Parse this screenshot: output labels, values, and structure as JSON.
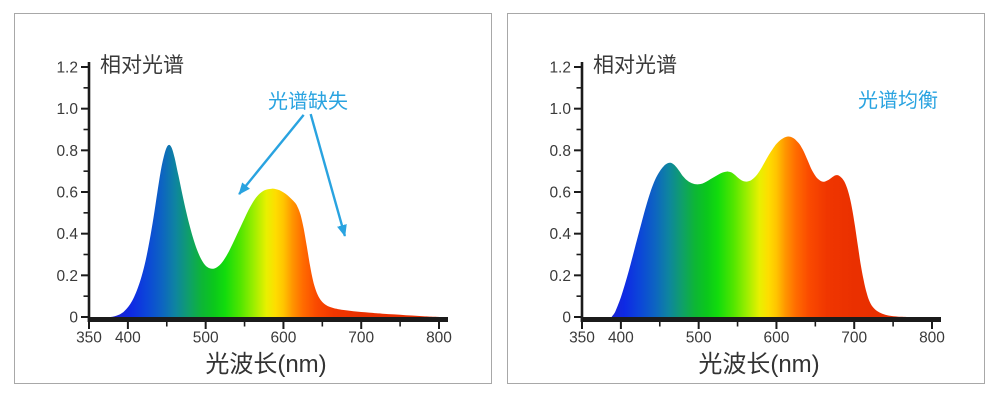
{
  "page": {
    "background": "#ffffff",
    "panel_border": "#a8a8a8",
    "axis_color": "#1b1b1b"
  },
  "chart_data": [
    {
      "type": "area",
      "title": "相对光谱",
      "xlabel": "光波长(nm)",
      "ylabel": "",
      "xlim": [
        350,
        800
      ],
      "ylim": [
        0,
        1.2
      ],
      "grid": false,
      "x_major_ticks": [
        350,
        400,
        500,
        600,
        700,
        800
      ],
      "x_minor_ticks": [
        450,
        550,
        650,
        750
      ],
      "y_major_tick_labels": [
        "0",
        "0.2",
        "0.4",
        "0.6",
        "0.8",
        "1.0",
        "1.2"
      ],
      "y_minor_ticks": [
        0.1,
        0.3,
        0.5,
        0.7,
        0.9,
        1.1
      ],
      "annotation": {
        "label": "光谱缺失",
        "color": "#29a3e0",
        "arrows": [
          {
            "from": [
              626,
              0.97
            ],
            "to": [
              543,
              0.59
            ]
          },
          {
            "from": [
              635,
              0.974
            ],
            "to": [
              679,
              0.389
            ]
          }
        ]
      },
      "series": [
        {
          "name": "相对光谱",
          "points": [
            [
              378,
              0
            ],
            [
              383,
              0.004
            ],
            [
              388,
              0.01
            ],
            [
              393,
              0.02
            ],
            [
              398,
              0.038
            ],
            [
              403,
              0.062
            ],
            [
              408,
              0.096
            ],
            [
              413,
              0.142
            ],
            [
              418,
              0.2
            ],
            [
              423,
              0.275
            ],
            [
              428,
              0.37
            ],
            [
              433,
              0.48
            ],
            [
              438,
              0.6
            ],
            [
              443,
              0.715
            ],
            [
              448,
              0.795
            ],
            [
              452,
              0.825
            ],
            [
              456,
              0.815
            ],
            [
              460,
              0.765
            ],
            [
              465,
              0.68
            ],
            [
              470,
              0.59
            ],
            [
              475,
              0.505
            ],
            [
              480,
              0.43
            ],
            [
              485,
              0.365
            ],
            [
              490,
              0.312
            ],
            [
              495,
              0.272
            ],
            [
              500,
              0.246
            ],
            [
              505,
              0.234
            ],
            [
              510,
              0.232
            ],
            [
              515,
              0.24
            ],
            [
              520,
              0.257
            ],
            [
              525,
              0.283
            ],
            [
              530,
              0.316
            ],
            [
              535,
              0.354
            ],
            [
              540,
              0.394
            ],
            [
              545,
              0.434
            ],
            [
              550,
              0.474
            ],
            [
              555,
              0.512
            ],
            [
              560,
              0.546
            ],
            [
              565,
              0.574
            ],
            [
              570,
              0.594
            ],
            [
              575,
              0.607
            ],
            [
              580,
              0.613
            ],
            [
              585,
              0.616
            ],
            [
              590,
              0.614
            ],
            [
              595,
              0.608
            ],
            [
              600,
              0.598
            ],
            [
              605,
              0.585
            ],
            [
              610,
              0.568
            ],
            [
              615,
              0.548
            ],
            [
              618,
              0.53
            ],
            [
              622,
              0.49
            ],
            [
              626,
              0.425
            ],
            [
              630,
              0.34
            ],
            [
              634,
              0.25
            ],
            [
              638,
              0.175
            ],
            [
              642,
              0.125
            ],
            [
              646,
              0.092
            ],
            [
              650,
              0.072
            ],
            [
              655,
              0.057
            ],
            [
              660,
              0.048
            ],
            [
              665,
              0.042
            ],
            [
              670,
              0.038
            ],
            [
              680,
              0.032
            ],
            [
              690,
              0.028
            ],
            [
              700,
              0.024
            ],
            [
              710,
              0.021
            ],
            [
              720,
              0.018
            ],
            [
              735,
              0.014
            ],
            [
              750,
              0.011
            ],
            [
              765,
              0.007
            ],
            [
              780,
              0.004
            ],
            [
              795,
              0.001
            ],
            [
              800,
              0
            ]
          ]
        }
      ]
    },
    {
      "type": "area",
      "title": "相对光谱",
      "xlabel": "光波长(nm)",
      "ylabel": "",
      "xlim": [
        350,
        800
      ],
      "ylim": [
        0,
        1.2
      ],
      "grid": false,
      "x_major_ticks": [
        350,
        400,
        500,
        600,
        700,
        800
      ],
      "x_minor_ticks": [
        450,
        550,
        650,
        750
      ],
      "y_major_tick_labels": [
        "0",
        "0.2",
        "0.4",
        "0.6",
        "0.8",
        "1.0",
        "1.2"
      ],
      "y_minor_ticks": [
        0.1,
        0.3,
        0.5,
        0.7,
        0.9,
        1.1
      ],
      "annotation": {
        "label": "光谱均衡",
        "color": "#29a3e0",
        "arrows": []
      },
      "series": [
        {
          "name": "相对光谱",
          "points": [
            [
              388,
              0
            ],
            [
              392,
              0.02
            ],
            [
              396,
              0.055
            ],
            [
              400,
              0.095
            ],
            [
              405,
              0.155
            ],
            [
              410,
              0.22
            ],
            [
              415,
              0.29
            ],
            [
              420,
              0.36
            ],
            [
              425,
              0.43
            ],
            [
              430,
              0.5
            ],
            [
              435,
              0.565
            ],
            [
              440,
              0.622
            ],
            [
              445,
              0.667
            ],
            [
              450,
              0.7
            ],
            [
              455,
              0.724
            ],
            [
              460,
              0.738
            ],
            [
              464,
              0.74
            ],
            [
              468,
              0.732
            ],
            [
              472,
              0.716
            ],
            [
              476,
              0.696
            ],
            [
              480,
              0.675
            ],
            [
              485,
              0.656
            ],
            [
              490,
              0.644
            ],
            [
              495,
              0.638
            ],
            [
              500,
              0.637
            ],
            [
              505,
              0.641
            ],
            [
              510,
              0.65
            ],
            [
              515,
              0.661
            ],
            [
              520,
              0.672
            ],
            [
              525,
              0.683
            ],
            [
              530,
              0.692
            ],
            [
              535,
              0.697
            ],
            [
              538,
              0.698
            ],
            [
              542,
              0.694
            ],
            [
              546,
              0.684
            ],
            [
              550,
              0.67
            ],
            [
              554,
              0.659
            ],
            [
              558,
              0.652
            ],
            [
              562,
              0.65
            ],
            [
              566,
              0.654
            ],
            [
              570,
              0.664
            ],
            [
              575,
              0.683
            ],
            [
              580,
              0.711
            ],
            [
              585,
              0.744
            ],
            [
              590,
              0.777
            ],
            [
              595,
              0.806
            ],
            [
              600,
              0.831
            ],
            [
              605,
              0.849
            ],
            [
              610,
              0.861
            ],
            [
              614,
              0.866
            ],
            [
              618,
              0.865
            ],
            [
              622,
              0.858
            ],
            [
              626,
              0.845
            ],
            [
              630,
              0.828
            ],
            [
              635,
              0.795
            ],
            [
              640,
              0.752
            ],
            [
              645,
              0.71
            ],
            [
              650,
              0.678
            ],
            [
              654,
              0.661
            ],
            [
              658,
              0.651
            ],
            [
              662,
              0.65
            ],
            [
              666,
              0.656
            ],
            [
              670,
              0.666
            ],
            [
              674,
              0.677
            ],
            [
              677,
              0.681
            ],
            [
              680,
              0.679
            ],
            [
              684,
              0.667
            ],
            [
              688,
              0.645
            ],
            [
              692,
              0.605
            ],
            [
              696,
              0.545
            ],
            [
              700,
              0.46
            ],
            [
              704,
              0.36
            ],
            [
              708,
              0.26
            ],
            [
              712,
              0.178
            ],
            [
              716,
              0.115
            ],
            [
              720,
              0.072
            ],
            [
              725,
              0.043
            ],
            [
              731,
              0.025
            ],
            [
              738,
              0.013
            ],
            [
              746,
              0.006
            ],
            [
              756,
              0.002
            ],
            [
              770,
              0
            ]
          ]
        }
      ]
    }
  ],
  "spectrum_gradient": [
    [
      350,
      "#2a2ab2"
    ],
    [
      385,
      "#1b22d2"
    ],
    [
      405,
      "#0e2ae4"
    ],
    [
      425,
      "#0c47d8"
    ],
    [
      445,
      "#0d66c0"
    ],
    [
      462,
      "#0e869e"
    ],
    [
      478,
      "#0f9e6c"
    ],
    [
      495,
      "#0db636"
    ],
    [
      510,
      "#0bc71c"
    ],
    [
      525,
      "#12dc0c"
    ],
    [
      545,
      "#52e600"
    ],
    [
      562,
      "#9cee00"
    ],
    [
      578,
      "#e8f000"
    ],
    [
      590,
      "#fedd00"
    ],
    [
      600,
      "#ffc400"
    ],
    [
      612,
      "#ff9400"
    ],
    [
      625,
      "#ff6c00"
    ],
    [
      642,
      "#fa4a00"
    ],
    [
      665,
      "#f03600"
    ],
    [
      700,
      "#ea3000"
    ],
    [
      800,
      "#e42c00"
    ]
  ]
}
